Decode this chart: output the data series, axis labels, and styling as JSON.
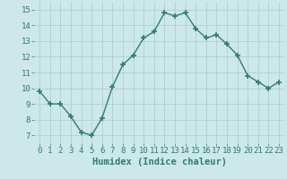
{
  "x": [
    0,
    1,
    2,
    3,
    4,
    5,
    6,
    7,
    8,
    9,
    10,
    11,
    12,
    13,
    14,
    15,
    16,
    17,
    18,
    19,
    20,
    21,
    22,
    23
  ],
  "y": [
    9.8,
    9.0,
    9.0,
    8.2,
    7.2,
    7.0,
    8.1,
    10.1,
    11.5,
    12.1,
    13.2,
    13.6,
    14.8,
    14.6,
    14.8,
    13.8,
    13.2,
    13.4,
    12.8,
    12.1,
    10.8,
    10.4,
    10.0,
    10.4
  ],
  "line_color": "#2e7d6e",
  "marker": "+",
  "marker_size": 4,
  "bg_color": "#cce8e8",
  "grid_color": "#b0d0d0",
  "xlabel": "Humidex (Indice chaleur)",
  "xlim": [
    -0.5,
    23.5
  ],
  "ylim": [
    6.5,
    15.5
  ],
  "yticks": [
    7,
    8,
    9,
    10,
    11,
    12,
    13,
    14,
    15
  ],
  "xticks": [
    0,
    1,
    2,
    3,
    4,
    5,
    6,
    7,
    8,
    9,
    10,
    11,
    12,
    13,
    14,
    15,
    16,
    17,
    18,
    19,
    20,
    21,
    22,
    23
  ],
  "tick_fontsize": 6.5,
  "xlabel_fontsize": 7.5,
  "linewidth": 1.0
}
